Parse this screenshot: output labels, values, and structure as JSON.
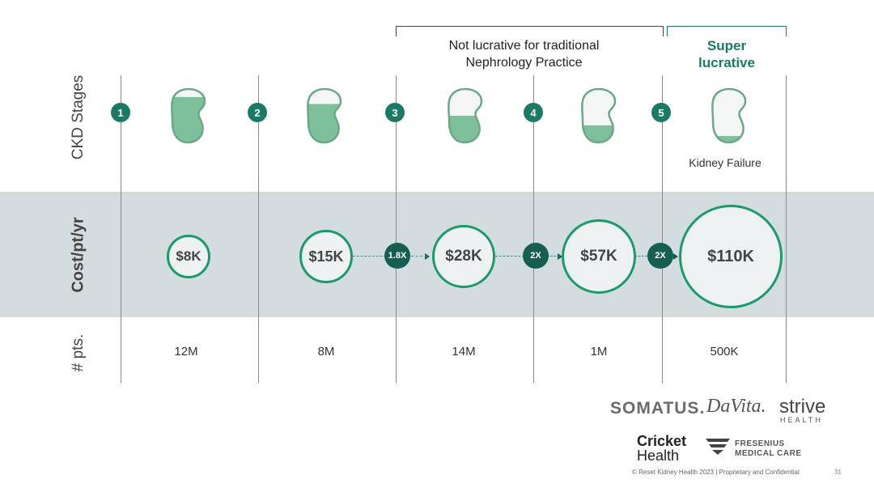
{
  "row_labels": {
    "stages": "CKD Stages",
    "cost": "Cost/pt/yr",
    "pts": "# pts."
  },
  "brackets": {
    "not_lucrative": "Not lucrative for traditional Nephrology Practice",
    "super_lucrative": "Super lucrative"
  },
  "stages": [
    {
      "number": "1",
      "cost": "$8K",
      "patients": "12M",
      "kidney_fill": 0.85
    },
    {
      "number": "2",
      "cost": "$15K",
      "patients": "8M",
      "kidney_fill": 0.72
    },
    {
      "number": "3",
      "cost": "$28K",
      "patients": "14M",
      "kidney_fill": 0.5
    },
    {
      "number": "4",
      "cost": "$57K",
      "patients": "1M",
      "kidney_fill": 0.32
    },
    {
      "number": "5",
      "cost": "$110K",
      "patients": "500K",
      "kidney_fill": 0.12,
      "label": "Kidney Failure"
    }
  ],
  "multipliers": [
    "1.8X",
    "2X",
    "2X"
  ],
  "logos": {
    "somatus": "SOMATUS.",
    "davita": "DaVita.",
    "strive_1": "strive",
    "strive_2": "HEALTH",
    "cricket_1": "Cricket",
    "cricket_2": "Health",
    "fresenius_1": "FRESENIUS",
    "fresenius_2": "MEDICAL CARE"
  },
  "footer": "© Reset Kidney Health 2023   |   Proprietary and Confidential",
  "page_number": "31",
  "colors": {
    "accent": "#1b7a66",
    "bubble_border": "#1b9a6b",
    "band": "#d3dddf",
    "kidney_fill": "#7fc09c"
  }
}
